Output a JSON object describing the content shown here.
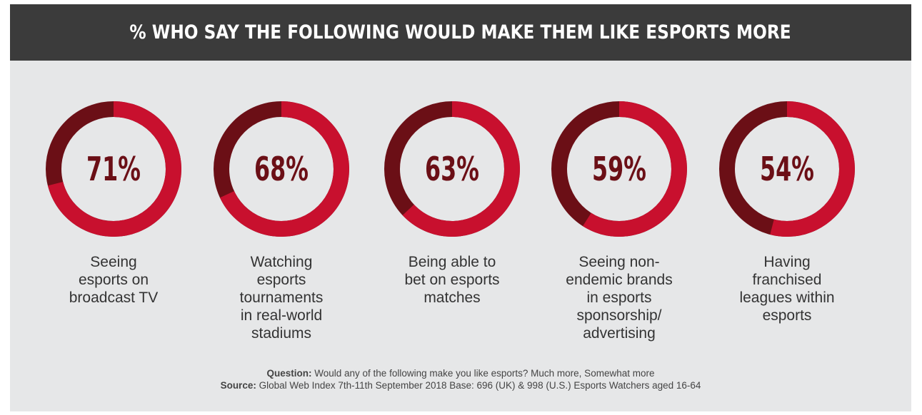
{
  "header": {
    "title": "% WHO SAY THE FOLLOWING WOULD MAKE THEM LIKE ESPORTS MORE"
  },
  "colors": {
    "ring_primary": "#c8102e",
    "ring_secondary": "#6b0f16",
    "header_bg": "#3b3b3b",
    "panel_bg": "#e6e7e8"
  },
  "chart_data": {
    "type": "donut",
    "title": "% WHO SAY THE FOLLOWING WOULD MAKE THEM LIKE ESPORTS MORE",
    "unit": "%",
    "items": [
      {
        "label": "Seeing esports on broadcast TV",
        "value": 71,
        "display": "71%",
        "lines": [
          "Seeing",
          "esports on",
          "broadcast TV"
        ]
      },
      {
        "label": "Watching esports tournaments in real-world stadiums",
        "value": 68,
        "display": "68%",
        "lines": [
          "Watching",
          "esports",
          "tournaments",
          "in real-world",
          "stadiums"
        ]
      },
      {
        "label": "Being able to bet on esports matches",
        "value": 63,
        "display": "63%",
        "lines": [
          "Being able to",
          "bet on esports",
          "matches"
        ]
      },
      {
        "label": "Seeing non-endemic brands in esports sponsorship/ advertising",
        "value": 59,
        "display": "59%",
        "lines": [
          "Seeing non-",
          "endemic brands",
          "in esports",
          "sponsorship/",
          "advertising"
        ]
      },
      {
        "label": "Having franchised leagues within esports",
        "value": 54,
        "display": "54%",
        "lines": [
          "Having",
          "franchised",
          "leagues within",
          "esports"
        ]
      }
    ]
  },
  "footnote": {
    "question_label": "Question:",
    "question_text": " Would any of the following make you like esports? Much more, Somewhat more",
    "source_label": "Source:",
    "source_text": " Global Web Index 7th-11th September 2018 Base: 696 (UK) & 998 (U.S.) Esports Watchers aged 16-64"
  }
}
